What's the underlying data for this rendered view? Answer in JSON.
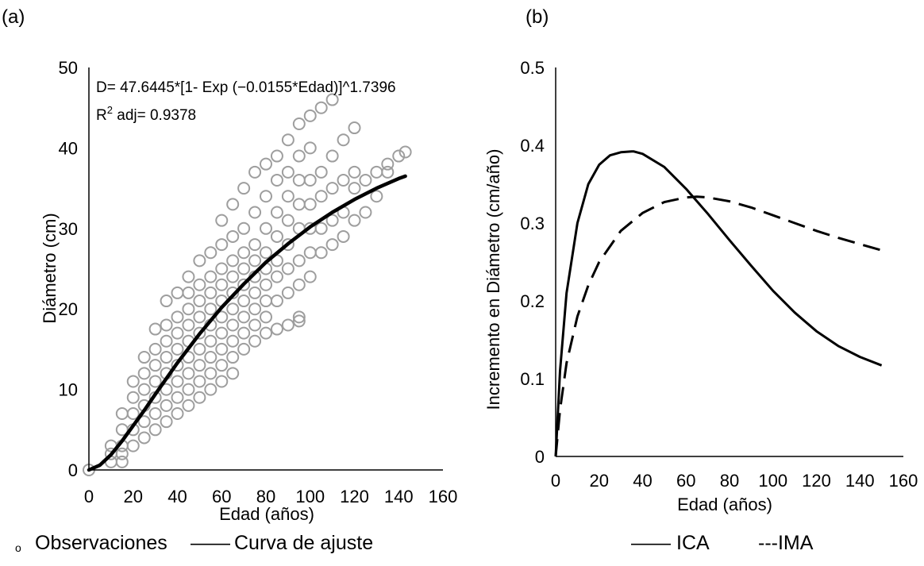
{
  "chart_data": [
    {
      "panel_label": "(a)",
      "type": "scatter",
      "xlabel": "Edad (años)",
      "ylabel": "Diámetro (cm)",
      "xlim": [
        0,
        160
      ],
      "ylim": [
        0,
        50
      ],
      "xticks": [
        "0",
        "20",
        "40",
        "60",
        "80",
        "100",
        "120",
        "140",
        "160"
      ],
      "yticks": [
        "0",
        "10",
        "20",
        "30",
        "40",
        "50"
      ],
      "grid": false,
      "annotations": {
        "equation": "D= 47.6445*[1- Exp (−0.0155*Edad)]^1.7396",
        "r2_prefix": "R",
        "r2_sup": "2",
        "r2_suffix": " adj= 0.9378"
      },
      "series": [
        {
          "name": "Observaciones",
          "kind": "scatter",
          "color": "#9e9e9e",
          "points": [
            [
              0,
              0
            ],
            [
              10,
              1
            ],
            [
              10,
              2
            ],
            [
              10,
              3
            ],
            [
              15,
              1
            ],
            [
              15,
              2
            ],
            [
              15,
              3
            ],
            [
              15,
              5
            ],
            [
              15,
              7
            ],
            [
              20,
              3
            ],
            [
              20,
              5
            ],
            [
              20,
              7
            ],
            [
              20,
              9
            ],
            [
              20,
              11
            ],
            [
              25,
              4
            ],
            [
              25,
              6
            ],
            [
              25,
              8
            ],
            [
              25,
              10
            ],
            [
              25,
              12
            ],
            [
              25,
              14
            ],
            [
              30,
              5
            ],
            [
              30,
              7
            ],
            [
              30,
              9
            ],
            [
              30,
              11
            ],
            [
              30,
              13
            ],
            [
              30,
              15
            ],
            [
              30,
              17.5
            ],
            [
              35,
              6
            ],
            [
              35,
              8
            ],
            [
              35,
              10
            ],
            [
              35,
              12
            ],
            [
              35,
              14
            ],
            [
              35,
              16
            ],
            [
              35,
              18
            ],
            [
              35,
              21
            ],
            [
              40,
              7
            ],
            [
              40,
              9
            ],
            [
              40,
              11
            ],
            [
              40,
              13
            ],
            [
              40,
              15
            ],
            [
              40,
              17
            ],
            [
              40,
              19
            ],
            [
              40,
              22
            ],
            [
              45,
              8
            ],
            [
              45,
              10
            ],
            [
              45,
              12
            ],
            [
              45,
              14
            ],
            [
              45,
              16
            ],
            [
              45,
              18
            ],
            [
              45,
              20
            ],
            [
              45,
              22
            ],
            [
              45,
              24
            ],
            [
              50,
              9
            ],
            [
              50,
              11
            ],
            [
              50,
              13
            ],
            [
              50,
              15
            ],
            [
              50,
              17
            ],
            [
              50,
              19
            ],
            [
              50,
              21
            ],
            [
              50,
              23
            ],
            [
              50,
              26
            ],
            [
              55,
              10
            ],
            [
              55,
              12
            ],
            [
              55,
              14
            ],
            [
              55,
              16
            ],
            [
              55,
              18
            ],
            [
              55,
              20
            ],
            [
              55,
              22
            ],
            [
              55,
              24
            ],
            [
              55,
              27
            ],
            [
              60,
              11
            ],
            [
              60,
              13
            ],
            [
              60,
              15
            ],
            [
              60,
              17
            ],
            [
              60,
              19
            ],
            [
              60,
              21
            ],
            [
              60,
              23
            ],
            [
              60,
              25
            ],
            [
              60,
              28
            ],
            [
              60,
              31
            ],
            [
              65,
              12
            ],
            [
              65,
              14
            ],
            [
              65,
              16
            ],
            [
              65,
              18
            ],
            [
              65,
              20
            ],
            [
              65,
              22
            ],
            [
              65,
              24
            ],
            [
              65,
              26
            ],
            [
              65,
              29
            ],
            [
              65,
              33
            ],
            [
              70,
              15
            ],
            [
              70,
              17
            ],
            [
              70,
              19
            ],
            [
              70,
              21
            ],
            [
              70,
              23
            ],
            [
              70,
              25
            ],
            [
              70,
              27
            ],
            [
              70,
              30
            ],
            [
              70,
              35
            ],
            [
              75,
              16
            ],
            [
              75,
              18
            ],
            [
              75,
              20
            ],
            [
              75,
              22
            ],
            [
              75,
              24
            ],
            [
              75,
              26
            ],
            [
              75,
              28
            ],
            [
              75,
              32
            ],
            [
              75,
              37
            ],
            [
              80,
              17
            ],
            [
              80,
              19
            ],
            [
              80,
              21
            ],
            [
              80,
              23
            ],
            [
              80,
              25
            ],
            [
              80,
              27
            ],
            [
              80,
              30
            ],
            [
              80,
              34
            ],
            [
              80,
              38
            ],
            [
              85,
              17.5
            ],
            [
              85,
              21
            ],
            [
              85,
              24
            ],
            [
              85,
              26
            ],
            [
              85,
              29
            ],
            [
              85,
              32
            ],
            [
              85,
              36
            ],
            [
              85,
              39
            ],
            [
              90,
              18
            ],
            [
              90,
              22
            ],
            [
              90,
              25
            ],
            [
              90,
              28
            ],
            [
              90,
              31
            ],
            [
              90,
              34
            ],
            [
              90,
              37
            ],
            [
              90,
              41
            ],
            [
              95,
              18.5
            ],
            [
              95,
              19
            ],
            [
              95,
              23
            ],
            [
              95,
              26
            ],
            [
              95,
              30
            ],
            [
              95,
              33
            ],
            [
              95,
              36
            ],
            [
              95,
              39
            ],
            [
              95,
              43
            ],
            [
              100,
              24
            ],
            [
              100,
              27
            ],
            [
              100,
              30
            ],
            [
              100,
              33
            ],
            [
              100,
              36
            ],
            [
              100,
              40
            ],
            [
              100,
              44
            ],
            [
              105,
              27
            ],
            [
              105,
              30
            ],
            [
              105,
              34
            ],
            [
              105,
              37
            ],
            [
              105,
              45
            ],
            [
              110,
              28
            ],
            [
              110,
              31
            ],
            [
              110,
              35
            ],
            [
              110,
              39
            ],
            [
              110,
              46
            ],
            [
              115,
              29
            ],
            [
              115,
              32
            ],
            [
              115,
              36
            ],
            [
              115,
              41
            ],
            [
              120,
              31
            ],
            [
              120,
              35
            ],
            [
              120,
              37
            ],
            [
              120,
              42.5
            ],
            [
              125,
              32
            ],
            [
              125,
              36
            ],
            [
              130,
              34
            ],
            [
              130,
              37
            ],
            [
              135,
              37
            ],
            [
              135,
              38
            ],
            [
              140,
              39
            ],
            [
              143,
              39.5
            ]
          ]
        },
        {
          "name": "Curva de ajuste",
          "kind": "line",
          "color": "#000000",
          "x": [
            0,
            5,
            10,
            15,
            20,
            25,
            30,
            40,
            50,
            60,
            70,
            80,
            90,
            100,
            110,
            120,
            130,
            140,
            143
          ],
          "y": [
            0,
            0.6,
            1.9,
            3.6,
            5.5,
            7.4,
            9.4,
            13.3,
            16.9,
            20.2,
            23.1,
            25.8,
            28.1,
            30.2,
            32.0,
            33.6,
            35.0,
            36.2,
            36.5
          ]
        }
      ]
    },
    {
      "panel_label": "(b)",
      "type": "line",
      "xlabel": "Edad (años)",
      "ylabel": "Incremento en Diámetro (cm/año)",
      "xlim": [
        0,
        160
      ],
      "ylim": [
        0,
        0.5
      ],
      "xticks": [
        "0",
        "20",
        "40",
        "60",
        "80",
        "100",
        "120",
        "140",
        "160"
      ],
      "yticks": [
        "0",
        "0.1",
        "0.2",
        "0.3",
        "0.4",
        "0.5"
      ],
      "grid": false,
      "series": [
        {
          "name": "ICA",
          "style": "solid",
          "color": "#000000",
          "x": [
            0,
            2,
            5,
            10,
            15,
            20,
            25,
            30,
            35,
            36,
            40,
            50,
            60,
            70,
            80,
            90,
            100,
            110,
            120,
            130,
            140,
            150
          ],
          "y": [
            0,
            0.11,
            0.21,
            0.3,
            0.35,
            0.375,
            0.387,
            0.391,
            0.392,
            0.392,
            0.389,
            0.372,
            0.344,
            0.312,
            0.278,
            0.245,
            0.213,
            0.185,
            0.161,
            0.142,
            0.128,
            0.117
          ]
        },
        {
          "name": "IMA",
          "style": "dashed",
          "color": "#000000",
          "x": [
            0,
            2,
            5,
            10,
            15,
            20,
            30,
            40,
            50,
            60,
            65,
            70,
            80,
            90,
            100,
            110,
            120,
            130,
            140,
            150
          ],
          "y": [
            0,
            0.06,
            0.12,
            0.18,
            0.22,
            0.25,
            0.29,
            0.313,
            0.327,
            0.333,
            0.334,
            0.333,
            0.328,
            0.32,
            0.31,
            0.3,
            0.29,
            0.281,
            0.273,
            0.265
          ]
        }
      ]
    }
  ],
  "legend_a": {
    "marker_glyph": "o",
    "observaciones_label": "Observaciones",
    "curva_dash": "——",
    "curva_label": "Curva de ajuste"
  },
  "legend_b": {
    "ica_dash": "——",
    "ica_label": "ICA",
    "ima_label": "---IMA"
  }
}
